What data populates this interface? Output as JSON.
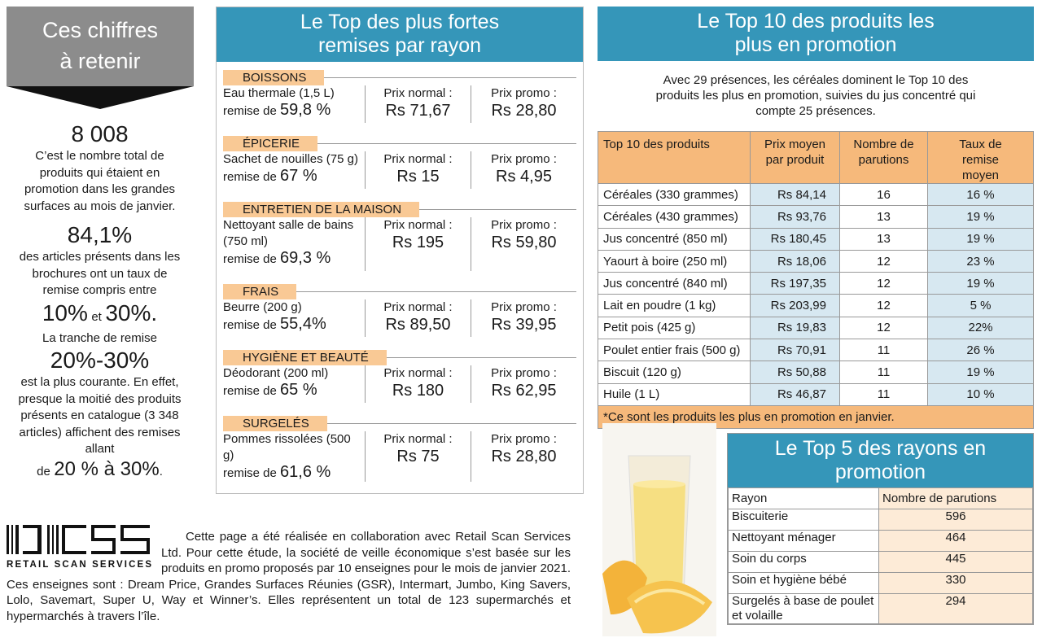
{
  "left": {
    "title": "Ces chiffres à retenir",
    "stat1": "8 008",
    "text1": "C’est le nombre total de produits qui étaient en promotion dans les grandes surfaces au mois de janvier.",
    "stat2": "84,1%",
    "text2": "des articles présents dans les brochures ont un taux de remise compris entre",
    "range_a": "10%",
    "range_et": "et",
    "range_b": "30%.",
    "text3": "La tranche de remise",
    "stat3": "20%-30%",
    "text4": "est la plus courante. En effet, presque la moitié des produits présents en catalogue (3 348 articles) affichent des remises allant",
    "text5_de": "de",
    "text5_range": "20 % à 30%",
    "text5_end": "."
  },
  "middle": {
    "title": "Le Top des plus fortes remises par rayon",
    "normal_label": "Prix normal :",
    "promo_label": "Prix promo :",
    "remise_label": "remise de",
    "sections": [
      {
        "rayon": "BOISSONS",
        "product": "Eau thermale (1,5 L)",
        "remise": "59,8 %",
        "normal": "Rs 71,67",
        "promo": "Rs 28,80"
      },
      {
        "rayon": "ÉPICERIE",
        "product": "Sachet de nouilles (75 g)",
        "remise": "67 %",
        "normal": "Rs 15",
        "promo": "Rs  4,95"
      },
      {
        "rayon": "ENTRETIEN DE LA MAISON",
        "product": "Nettoyant salle de bains (750 ml)",
        "remise": "69,3 %",
        "normal": "Rs 195",
        "promo": "Rs  59,80"
      },
      {
        "rayon": "FRAIS",
        "product": "Beurre (200 g)",
        "remise": "55,4%",
        "normal": "Rs 89,50",
        "promo": "Rs 39,95"
      },
      {
        "rayon": "HYGIÈNE ET BEAUTÉ",
        "product": "Déodorant (200 ml)",
        "remise": "65 %",
        "normal": "Rs  180",
        "promo": "Rs 62,95"
      },
      {
        "rayon": "SURGELÉS",
        "product": "Pommes rissolées (500 g)",
        "remise": "61,6 %",
        "normal": "Rs 75",
        "promo": "Rs 28,80"
      }
    ]
  },
  "right": {
    "title": "Le Top 10 des produits les plus en promotion",
    "intro": "Avec 29 présences, les céréales dominent le Top 10 des produits les plus en promotion, suivies du jus concentré qui compte 25 présences.",
    "headers": [
      "Top 10 des produits",
      "Prix moyen par produit",
      "Nombre de parutions",
      "Taux de remise moyen"
    ],
    "rows": [
      [
        "Céréales (330 grammes)",
        "Rs 84,14",
        "16",
        "16 %"
      ],
      [
        "Céréales (430 grammes)",
        "Rs 93,76",
        "13",
        "19 %"
      ],
      [
        "Jus concentré (850 ml)",
        "Rs 180,45",
        "13",
        "19 %"
      ],
      [
        "Yaourt à boire (250 ml)",
        "Rs 18,06",
        "12",
        "23 %"
      ],
      [
        "Jus concentré (840 ml)",
        "Rs 197,35",
        "12",
        "19 %"
      ],
      [
        "Lait en poudre (1 kg)",
        "Rs 203,99",
        "12",
        "5 %"
      ],
      [
        "Petit pois (425 g)",
        "Rs 19,83",
        "12",
        "22%"
      ],
      [
        "Poulet entier frais (500 g)",
        "Rs 70,91",
        "11",
        "26  %"
      ],
      [
        "Biscuit (120 g)",
        "Rs 50,88",
        "11",
        "19 %"
      ],
      [
        "Huile (1 L)",
        "Rs 46,87",
        "11",
        "10 %"
      ]
    ],
    "footnote": "*Ce sont les produits les plus en promotion en janvier."
  },
  "top5": {
    "title": "Le Top 5 des rayons en promotion",
    "headers": [
      "Rayon",
      "Nombre de parutions"
    ],
    "rows": [
      [
        "Biscuiterie",
        "596"
      ],
      [
        "Nettoyant ménager",
        "464"
      ],
      [
        "Soin du corps",
        "445"
      ],
      [
        "Soin et hygiène bébé",
        "330"
      ],
      [
        "Surgelés à base de poulet et volaille",
        "294"
      ]
    ]
  },
  "credit": {
    "logo_text": "RETAIL SCAN SERVICES",
    "text": "Cette page a été réalisée en collaboration avec Retail Scan Services Ltd. Pour cette étude, la société de veille économique s’est basée sur les produits en promo proposés par 10 enseignes pour le mois de janvier 2021. Ces enseignes sont : Dream Price, Grandes Surfaces Réunies (GSR), Intermart, Jumbo, King Savers, Lolo, Savemart, Super U, Way et Winner’s. Elles représentent un total de 123 supermarchés et hypermarchés à travers l’île."
  },
  "colors": {
    "blue": "#3596b9",
    "orange": "#f6b97b",
    "light_blue": "#d7e8f1",
    "gray": "#8c8c8c"
  }
}
